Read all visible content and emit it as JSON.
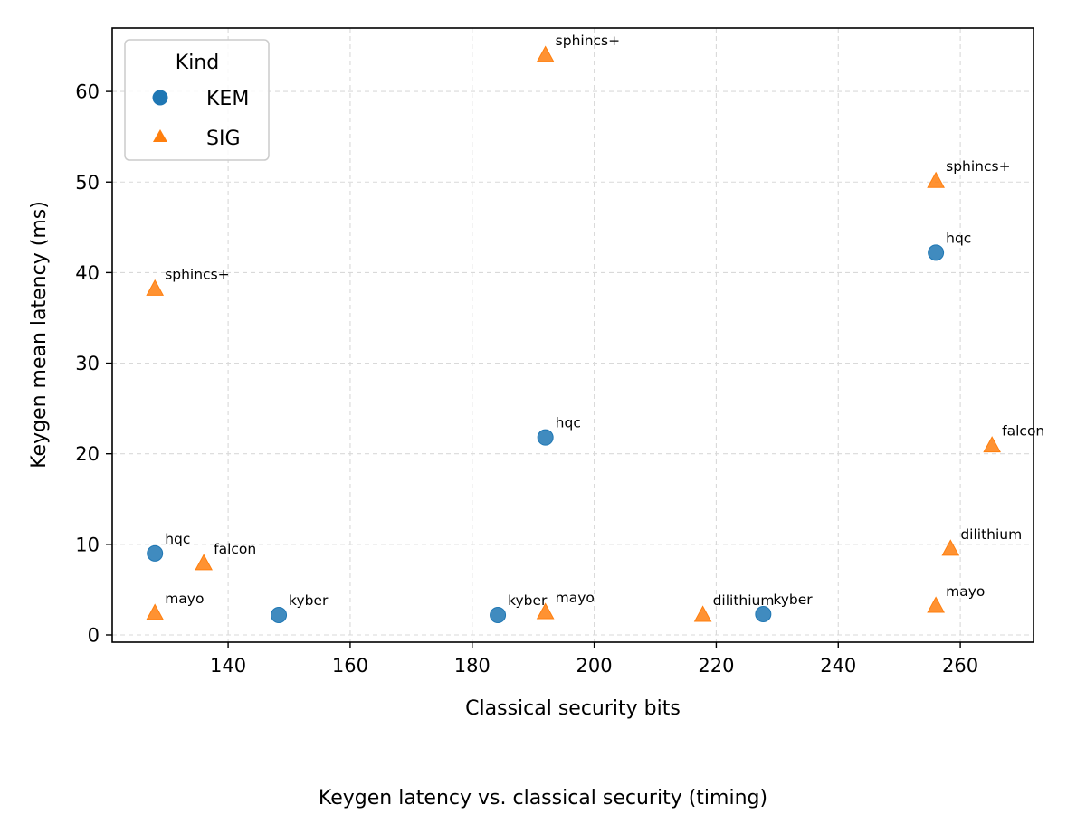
{
  "chart_data": {
    "type": "scatter",
    "caption": "Keygen latency vs. classical security (timing)",
    "xlabel": "Classical security bits",
    "ylabel": "Keygen mean latency (ms)",
    "xlim": [
      121,
      272
    ],
    "ylim": [
      -0.8,
      67
    ],
    "xticks": [
      140,
      160,
      180,
      200,
      220,
      240,
      260
    ],
    "yticks": [
      0,
      10,
      20,
      30,
      40,
      50,
      60
    ],
    "grid": true,
    "legend": {
      "title": "Kind",
      "placement": "top-left",
      "entries": [
        "KEM",
        "SIG"
      ]
    },
    "colors": {
      "KEM": "#1f77b4",
      "SIG": "#ff7f0e"
    },
    "series": [
      {
        "name": "KEM",
        "marker": "circle",
        "points": [
          {
            "x": 128,
            "y": 9.0,
            "label": "hqc"
          },
          {
            "x": 148.3,
            "y": 2.2,
            "label": "kyber"
          },
          {
            "x": 184.2,
            "y": 2.2,
            "label": "kyber"
          },
          {
            "x": 192,
            "y": 21.8,
            "label": "hqc"
          },
          {
            "x": 227.7,
            "y": 2.3,
            "label": "kyber"
          },
          {
            "x": 256,
            "y": 42.2,
            "label": "hqc"
          }
        ]
      },
      {
        "name": "SIG",
        "marker": "triangle",
        "points": [
          {
            "x": 128,
            "y": 38.2,
            "label": "sphincs+"
          },
          {
            "x": 128,
            "y": 2.4,
            "label": "mayo"
          },
          {
            "x": 136,
            "y": 7.9,
            "label": "falcon"
          },
          {
            "x": 192,
            "y": 64.0,
            "label": "sphincs+"
          },
          {
            "x": 192,
            "y": 2.5,
            "label": "mayo"
          },
          {
            "x": 217.8,
            "y": 2.2,
            "label": "dilithium"
          },
          {
            "x": 256,
            "y": 50.1,
            "label": "sphincs+"
          },
          {
            "x": 256,
            "y": 3.2,
            "label": "mayo"
          },
          {
            "x": 258.4,
            "y": 9.5,
            "label": "dilithium"
          },
          {
            "x": 265.2,
            "y": 20.9,
            "label": "falcon"
          }
        ]
      }
    ]
  }
}
